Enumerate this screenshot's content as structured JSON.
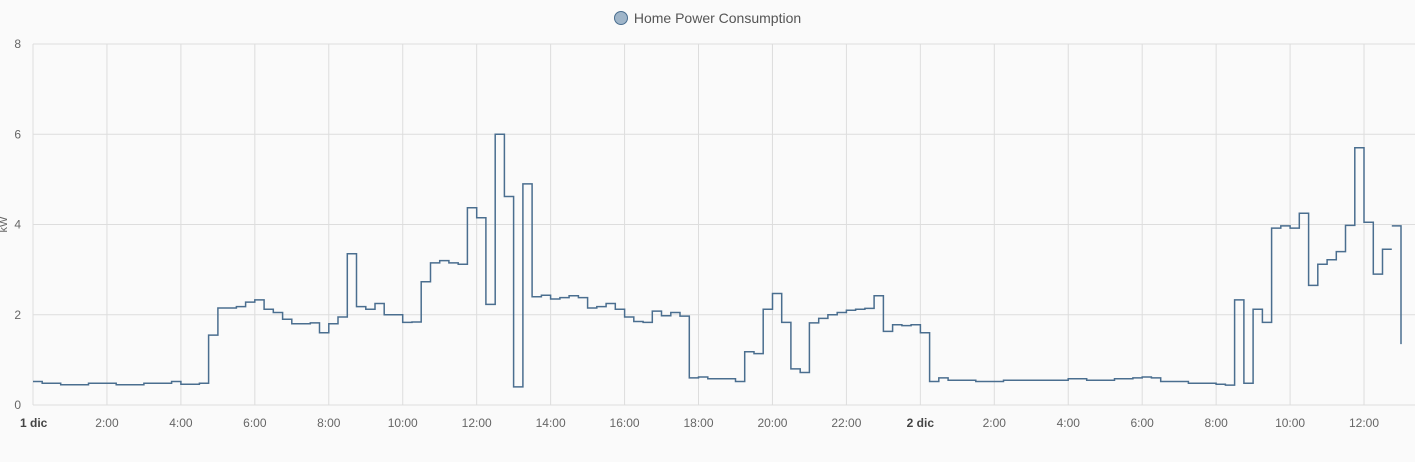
{
  "colors": {
    "line": "#4a6e8f",
    "swatch_fill": "#9fb5c9",
    "grid": "#dddddd",
    "background": "#fafafa"
  },
  "chart_data": {
    "type": "line",
    "step": true,
    "legend": "Home Power Consumption",
    "legend_position": "top-center",
    "grid": true,
    "ylabel": "kW",
    "ylim": [
      0,
      8
    ],
    "y_ticks": [
      0,
      2,
      4,
      6,
      8
    ],
    "xlim_hours": [
      0,
      37
    ],
    "x_tick_labels": [
      {
        "h": 0,
        "label": "1 dic",
        "major": true
      },
      {
        "h": 2,
        "label": "2:00"
      },
      {
        "h": 4,
        "label": "4:00"
      },
      {
        "h": 6,
        "label": "6:00"
      },
      {
        "h": 8,
        "label": "8:00"
      },
      {
        "h": 10,
        "label": "10:00"
      },
      {
        "h": 12,
        "label": "12:00"
      },
      {
        "h": 14,
        "label": "14:00"
      },
      {
        "h": 16,
        "label": "16:00"
      },
      {
        "h": 18,
        "label": "18:00"
      },
      {
        "h": 20,
        "label": "20:00"
      },
      {
        "h": 22,
        "label": "22:00"
      },
      {
        "h": 24,
        "label": "2 dic",
        "major": true
      },
      {
        "h": 26,
        "label": "2:00"
      },
      {
        "h": 28,
        "label": "4:00"
      },
      {
        "h": 30,
        "label": "6:00"
      },
      {
        "h": 32,
        "label": "8:00"
      },
      {
        "h": 34,
        "label": "10:00"
      },
      {
        "h": 36,
        "label": "12:00"
      }
    ],
    "series": [
      {
        "name": "Home Power Consumption",
        "segments": [
          [
            [
              0,
              0.52
            ],
            [
              0.25,
              0.48
            ],
            [
              0.75,
              0.45
            ],
            [
              1.5,
              0.48
            ],
            [
              2.25,
              0.45
            ],
            [
              3,
              0.48
            ],
            [
              3.75,
              0.52
            ],
            [
              4,
              0.46
            ],
            [
              4.5,
              0.48
            ],
            [
              4.75,
              1.55
            ],
            [
              5,
              2.15
            ],
            [
              5.5,
              2.18
            ],
            [
              5.75,
              2.28
            ],
            [
              6,
              2.33
            ],
            [
              6.25,
              2.12
            ],
            [
              6.5,
              2.05
            ],
            [
              6.75,
              1.9
            ],
            [
              7,
              1.8
            ],
            [
              7.5,
              1.82
            ],
            [
              7.75,
              1.6
            ],
            [
              8,
              1.8
            ],
            [
              8.25,
              1.95
            ],
            [
              8.5,
              3.35
            ],
            [
              8.75,
              2.18
            ],
            [
              9,
              2.12
            ],
            [
              9.25,
              2.25
            ],
            [
              9.5,
              2.0
            ],
            [
              10,
              1.83
            ],
            [
              10.25,
              1.84
            ],
            [
              10.5,
              2.73
            ],
            [
              10.75,
              3.15
            ],
            [
              11,
              3.2
            ],
            [
              11.25,
              3.15
            ],
            [
              11.5,
              3.12
            ],
            [
              11.75,
              4.37
            ],
            [
              12,
              4.15
            ],
            [
              12.25,
              2.23
            ],
            [
              12.5,
              6.0
            ],
            [
              12.75,
              4.62
            ],
            [
              13,
              0.4
            ],
            [
              13.25,
              4.9
            ],
            [
              13.5,
              2.4
            ],
            [
              13.75,
              2.43
            ],
            [
              14,
              2.35
            ],
            [
              14.25,
              2.38
            ],
            [
              14.5,
              2.42
            ],
            [
              14.75,
              2.38
            ],
            [
              15,
              2.15
            ],
            [
              15.25,
              2.18
            ],
            [
              15.5,
              2.25
            ],
            [
              15.75,
              2.12
            ],
            [
              16,
              1.95
            ],
            [
              16.25,
              1.85
            ],
            [
              16.5,
              1.83
            ],
            [
              16.75,
              2.08
            ],
            [
              17,
              1.98
            ],
            [
              17.25,
              2.05
            ],
            [
              17.5,
              1.97
            ],
            [
              17.75,
              0.6
            ],
            [
              18,
              0.62
            ],
            [
              18.25,
              0.58
            ],
            [
              19,
              0.52
            ],
            [
              19.25,
              1.18
            ],
            [
              19.5,
              1.14
            ],
            [
              19.75,
              2.12
            ],
            [
              20,
              2.47
            ],
            [
              20.25,
              1.83
            ],
            [
              20.5,
              0.8
            ],
            [
              20.75,
              0.72
            ],
            [
              21,
              1.82
            ],
            [
              21.25,
              1.92
            ],
            [
              21.5,
              2.0
            ],
            [
              21.75,
              2.05
            ],
            [
              22,
              2.1
            ],
            [
              22.25,
              2.12
            ],
            [
              22.5,
              2.14
            ],
            [
              22.75,
              2.42
            ],
            [
              23,
              1.63
            ],
            [
              23.25,
              1.78
            ],
            [
              23.5,
              1.76
            ],
            [
              23.75,
              1.78
            ],
            [
              24,
              1.6
            ],
            [
              24.25,
              0.52
            ],
            [
              24.5,
              0.6
            ],
            [
              24.75,
              0.55
            ],
            [
              25.5,
              0.52
            ],
            [
              26.25,
              0.55
            ],
            [
              27.5,
              0.55
            ],
            [
              28,
              0.58
            ],
            [
              28.5,
              0.55
            ],
            [
              29,
              0.55
            ],
            [
              29.25,
              0.58
            ],
            [
              29.75,
              0.6
            ],
            [
              30,
              0.62
            ],
            [
              30.25,
              0.6
            ],
            [
              30.5,
              0.52
            ],
            [
              31.25,
              0.48
            ],
            [
              32,
              0.46
            ],
            [
              32.25,
              0.44
            ],
            [
              32.5,
              2.33
            ],
            [
              32.75,
              0.48
            ],
            [
              33,
              2.12
            ],
            [
              33.25,
              1.83
            ],
            [
              33.5,
              3.92
            ],
            [
              33.75,
              3.97
            ],
            [
              34,
              3.92
            ],
            [
              34.25,
              4.25
            ],
            [
              34.5,
              2.65
            ],
            [
              34.75,
              3.12
            ],
            [
              35,
              3.22
            ],
            [
              35.25,
              3.4
            ],
            [
              35.5,
              3.98
            ],
            [
              35.75,
              5.7
            ],
            [
              36,
              4.05
            ],
            [
              36.25,
              2.9
            ],
            [
              36.5,
              3.45
            ]
          ],
          [
            [
              36.75,
              3.97
            ],
            [
              37,
              1.35
            ]
          ]
        ]
      }
    ]
  }
}
